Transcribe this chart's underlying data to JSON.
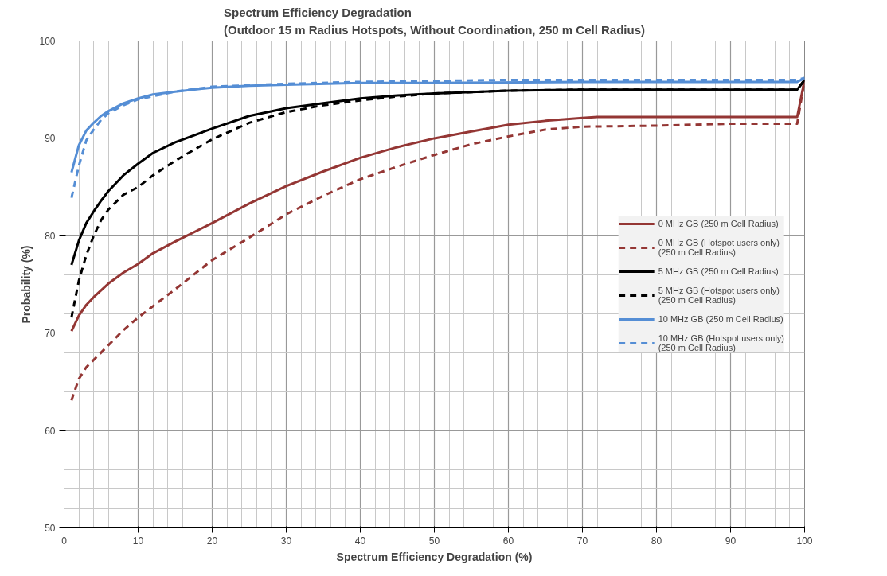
{
  "chart_data": {
    "type": "line",
    "title": "Spectrum Efficiency Degradation\n(Outdoor 15 m Radius Hotspots, Without Coordination, 250 m Cell Radius)",
    "xlabel": "Spectrum Efficiency Degradation (%)",
    "ylabel": "Probability (%)",
    "xlim": [
      0,
      100
    ],
    "xticks": [
      0,
      10,
      20,
      30,
      40,
      50,
      60,
      70,
      80,
      90,
      100
    ],
    "ylim": [
      50,
      100
    ],
    "yticks": [
      50,
      60,
      70,
      80,
      90,
      100
    ],
    "grid": true,
    "legend": "right",
    "marker": "none",
    "series": [
      {
        "name": "0 MHz GB (250 m Cell Radius)",
        "color": "#943634",
        "line_style": "solid",
        "x": [
          1,
          2,
          3,
          4,
          5,
          6,
          8,
          10,
          12,
          15,
          20,
          25,
          30,
          35,
          40,
          45,
          50,
          55,
          60,
          65,
          70,
          72,
          98,
          99,
          100
        ],
        "values": [
          70.2,
          71.8,
          72.9,
          73.7,
          74.4,
          75.1,
          76.2,
          77.1,
          78.2,
          79.4,
          81.3,
          83.3,
          85.1,
          86.6,
          88.0,
          89.1,
          90.0,
          90.7,
          91.4,
          91.8,
          92.1,
          92.2,
          92.2,
          92.2,
          96.0
        ]
      },
      {
        "name": "0 MHz GB (Hotspot users only)\n(250 m Cell Radius)",
        "color": "#943634",
        "line_style": "dashed",
        "x": [
          1,
          2,
          3,
          5,
          8,
          10,
          15,
          20,
          25,
          30,
          35,
          40,
          45,
          50,
          55,
          60,
          65,
          70,
          80,
          90,
          99,
          100
        ],
        "values": [
          63.1,
          65.3,
          66.5,
          68.0,
          70.3,
          71.6,
          74.5,
          77.5,
          79.8,
          82.2,
          84.1,
          85.8,
          87.1,
          88.3,
          89.4,
          90.2,
          90.9,
          91.2,
          91.3,
          91.5,
          91.5,
          96.0
        ]
      },
      {
        "name": "5 MHz GB (250 m Cell Radius)",
        "color": "#000000",
        "line_style": "solid",
        "x": [
          1,
          2,
          3,
          4,
          5,
          6,
          8,
          10,
          12,
          15,
          20,
          25,
          30,
          35,
          40,
          45,
          50,
          60,
          70,
          80,
          99,
          100
        ],
        "values": [
          77.0,
          79.5,
          81.3,
          82.5,
          83.6,
          84.6,
          86.2,
          87.4,
          88.5,
          89.6,
          91.0,
          92.3,
          93.1,
          93.6,
          94.1,
          94.4,
          94.6,
          94.9,
          95.0,
          95.0,
          95.0,
          96.0
        ]
      },
      {
        "name": "5 MHz GB (Hotspot users only)\n(250 m Cell Radius)",
        "color": "#000000",
        "line_style": "dashed",
        "x": [
          1,
          2,
          3,
          4,
          5,
          6,
          8,
          10,
          12,
          15,
          20,
          25,
          30,
          35,
          40,
          45,
          50,
          60,
          70,
          99,
          100
        ],
        "values": [
          71.6,
          75.4,
          78.0,
          80.0,
          81.6,
          82.7,
          84.2,
          85.0,
          86.2,
          87.7,
          89.9,
          91.6,
          92.7,
          93.4,
          93.9,
          94.3,
          94.6,
          94.9,
          95.0,
          95.0,
          96.0
        ]
      },
      {
        "name": "10 MHz GB (250 m Cell Radius)",
        "color": "#558ed5",
        "line_style": "solid",
        "x": [
          1,
          2,
          3,
          4,
          5,
          6,
          8,
          10,
          12,
          15,
          20,
          25,
          30,
          40,
          50,
          70,
          99,
          100
        ],
        "values": [
          86.5,
          89.3,
          90.8,
          91.6,
          92.3,
          92.8,
          93.6,
          94.1,
          94.5,
          94.8,
          95.2,
          95.4,
          95.5,
          95.7,
          95.7,
          95.8,
          95.8,
          96.2
        ]
      },
      {
        "name": "10 MHz GB (Hotspot users only)\n(250 m Cell Radius)",
        "color": "#558ed5",
        "line_style": "dashed",
        "x": [
          1,
          2,
          3,
          4,
          5,
          6,
          8,
          10,
          15,
          20,
          30,
          40,
          60,
          99,
          100
        ],
        "values": [
          83.9,
          87.2,
          89.8,
          90.9,
          91.9,
          92.6,
          93.4,
          94.0,
          94.8,
          95.3,
          95.6,
          95.8,
          96.0,
          96.0,
          96.2
        ]
      }
    ]
  }
}
